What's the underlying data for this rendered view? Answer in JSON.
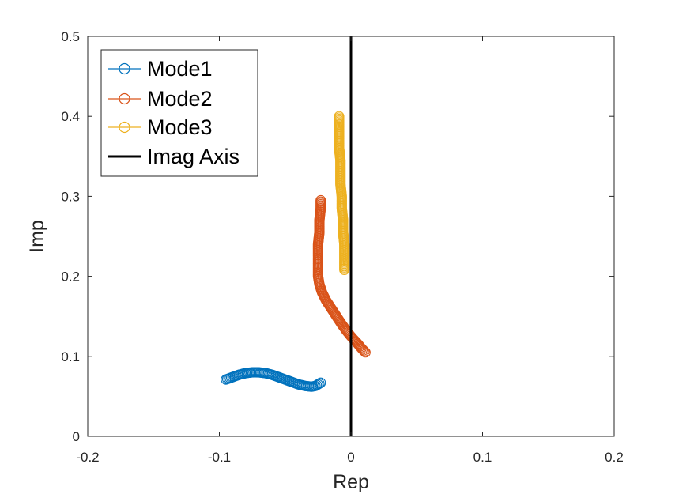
{
  "chart_data": {
    "type": "scatter",
    "xlabel": "Rep",
    "ylabel": "Imp",
    "xlim": [
      -0.2,
      0.2
    ],
    "ylim": [
      0,
      0.5
    ],
    "xticks": [
      -0.2,
      -0.1,
      0,
      0.1,
      0.2
    ],
    "xtick_labels": [
      "-0.2",
      "-0.1",
      "0",
      "0.1",
      "0.2"
    ],
    "yticks": [
      0,
      0.1,
      0.2,
      0.3,
      0.4,
      0.5
    ],
    "ytick_labels": [
      "0",
      "0.1",
      "0.2",
      "0.3",
      "0.4",
      "0.5"
    ],
    "grid": false,
    "legend_position": "top-left",
    "series": [
      {
        "name": "Mode1",
        "color": "#0072BD",
        "marker": "circle-open",
        "x": [
          -0.095,
          -0.09,
          -0.085,
          -0.08,
          -0.075,
          -0.07,
          -0.065,
          -0.06,
          -0.055,
          -0.05,
          -0.045,
          -0.04,
          -0.035,
          -0.03,
          -0.027,
          -0.025,
          -0.024,
          -0.023
        ],
        "y": [
          0.071,
          0.074,
          0.077,
          0.079,
          0.08,
          0.08,
          0.079,
          0.077,
          0.074,
          0.071,
          0.068,
          0.065,
          0.063,
          0.062,
          0.063,
          0.065,
          0.066,
          0.067
        ]
      },
      {
        "name": "Mode2",
        "color": "#D95319",
        "marker": "circle-open",
        "x": [
          -0.023,
          -0.023,
          -0.024,
          -0.024,
          -0.025,
          -0.025,
          -0.025,
          -0.025,
          -0.024,
          -0.022,
          -0.019,
          -0.015,
          -0.011,
          -0.007,
          -0.003,
          0.001,
          0.005,
          0.008,
          0.011
        ],
        "y": [
          0.295,
          0.285,
          0.27,
          0.255,
          0.24,
          0.225,
          0.212,
          0.2,
          0.19,
          0.18,
          0.17,
          0.16,
          0.15,
          0.14,
          0.131,
          0.123,
          0.116,
          0.11,
          0.105
        ]
      },
      {
        "name": "Mode3",
        "color": "#EDB120",
        "marker": "circle-open",
        "x": [
          -0.009,
          -0.009,
          -0.009,
          -0.009,
          -0.008,
          -0.008,
          -0.008,
          -0.007,
          -0.007,
          -0.006,
          -0.006,
          -0.005,
          -0.005,
          -0.005
        ],
        "y": [
          0.4,
          0.39,
          0.375,
          0.36,
          0.345,
          0.33,
          0.315,
          0.3,
          0.285,
          0.27,
          0.255,
          0.24,
          0.225,
          0.208
        ]
      }
    ],
    "reference_line": {
      "name": "Imag Axis",
      "color": "#000000",
      "x": 0
    }
  }
}
